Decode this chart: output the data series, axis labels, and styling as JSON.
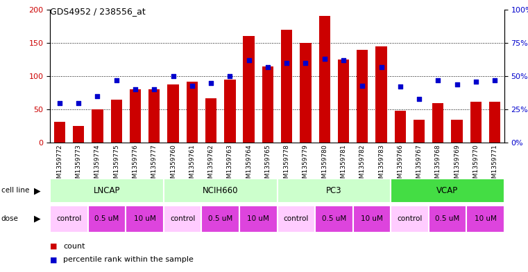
{
  "title": "GDS4952 / 238556_at",
  "samples": [
    "GSM1359772",
    "GSM1359773",
    "GSM1359774",
    "GSM1359775",
    "GSM1359776",
    "GSM1359777",
    "GSM1359760",
    "GSM1359761",
    "GSM1359762",
    "GSM1359763",
    "GSM1359764",
    "GSM1359765",
    "GSM1359778",
    "GSM1359779",
    "GSM1359780",
    "GSM1359781",
    "GSM1359782",
    "GSM1359783",
    "GSM1359766",
    "GSM1359767",
    "GSM1359768",
    "GSM1359769",
    "GSM1359770",
    "GSM1359771"
  ],
  "counts": [
    32,
    25,
    50,
    65,
    80,
    80,
    88,
    92,
    67,
    95,
    160,
    115,
    170,
    150,
    190,
    125,
    140,
    145,
    48,
    35,
    60,
    35,
    62,
    62
  ],
  "percentiles": [
    30,
    30,
    35,
    47,
    40,
    40,
    50,
    43,
    45,
    50,
    62,
    57,
    60,
    60,
    63,
    62,
    43,
    57,
    42,
    33,
    47,
    44,
    46,
    47
  ],
  "cell_lines": [
    {
      "name": "LNCAP",
      "start": 0,
      "end": 6,
      "color": "#ccffcc"
    },
    {
      "name": "NCIH660",
      "start": 6,
      "end": 12,
      "color": "#ccffcc"
    },
    {
      "name": "PC3",
      "start": 12,
      "end": 18,
      "color": "#ccffcc"
    },
    {
      "name": "VCAP",
      "start": 18,
      "end": 24,
      "color": "#44dd44"
    }
  ],
  "dose_groups": [
    {
      "label": "control",
      "start": 0,
      "end": 2,
      "color": "#ffccff"
    },
    {
      "label": "0.5 uM",
      "start": 2,
      "end": 4,
      "color": "#dd44dd"
    },
    {
      "label": "10 uM",
      "start": 4,
      "end": 6,
      "color": "#dd44dd"
    },
    {
      "label": "control",
      "start": 6,
      "end": 8,
      "color": "#ffccff"
    },
    {
      "label": "0.5 uM",
      "start": 8,
      "end": 10,
      "color": "#dd44dd"
    },
    {
      "label": "10 uM",
      "start": 10,
      "end": 12,
      "color": "#dd44dd"
    },
    {
      "label": "control",
      "start": 12,
      "end": 14,
      "color": "#ffccff"
    },
    {
      "label": "0.5 uM",
      "start": 14,
      "end": 16,
      "color": "#dd44dd"
    },
    {
      "label": "10 uM",
      "start": 16,
      "end": 18,
      "color": "#dd44dd"
    },
    {
      "label": "control",
      "start": 18,
      "end": 20,
      "color": "#ffccff"
    },
    {
      "label": "0.5 uM",
      "start": 20,
      "end": 22,
      "color": "#dd44dd"
    },
    {
      "label": "10 uM",
      "start": 22,
      "end": 24,
      "color": "#dd44dd"
    }
  ],
  "bar_color": "#cc0000",
  "dot_color": "#0000cc",
  "left_ylim": [
    0,
    200
  ],
  "right_ylim": [
    0,
    100
  ],
  "left_yticks": [
    0,
    50,
    100,
    150,
    200
  ],
  "right_yticks": [
    0,
    25,
    50,
    75,
    100
  ],
  "right_yticklabels": [
    "0%",
    "25%",
    "50%",
    "75%",
    "100%"
  ],
  "bg_color": "#ffffff",
  "plot_bg": "#ffffff",
  "sample_label_bg": "#cccccc",
  "cell_line_separator_color": "#ffffff"
}
